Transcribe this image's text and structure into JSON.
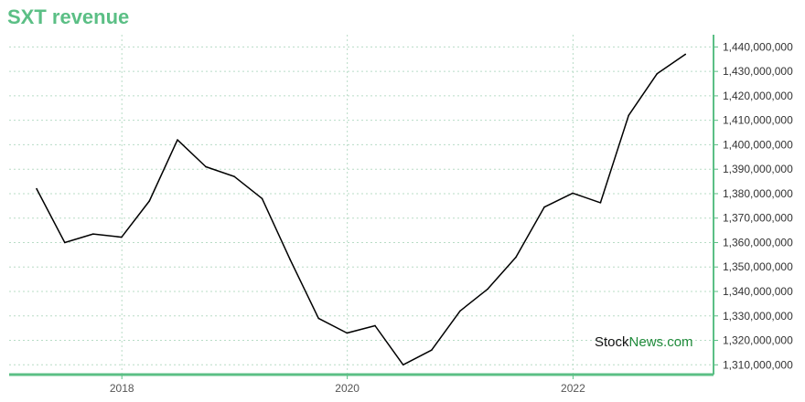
{
  "chart_data": {
    "type": "line",
    "title": "SXT revenue",
    "xlabel": "",
    "ylabel": "",
    "x": [
      "2017-03-31",
      "2017-06-30",
      "2017-09-30",
      "2017-12-31",
      "2018-03-31",
      "2018-06-30",
      "2018-09-30",
      "2018-12-31",
      "2019-03-31",
      "2019-06-30",
      "2019-09-30",
      "2019-12-31",
      "2020-03-31",
      "2020-06-30",
      "2020-09-30",
      "2020-12-31",
      "2021-03-31",
      "2021-06-30",
      "2021-09-30",
      "2021-12-31",
      "2022-03-31",
      "2022-06-30",
      "2022-09-30",
      "2022-12-31"
    ],
    "series": [
      {
        "name": "",
        "values": [
          1382000000,
          1360000000,
          1363500000,
          1362200000,
          1377000000,
          1402000000,
          1391000000,
          1387000000,
          1378000000,
          1353000000,
          1329000000,
          1323000000,
          1326000000,
          1310000000,
          1316000000,
          1332000000,
          1341000000,
          1354000000,
          1374500000,
          1380200000,
          1376300000,
          1412000000,
          1429000000,
          1437000000
        ],
        "color": "#000000"
      }
    ],
    "xticks": [
      "2018",
      "2020",
      "2022"
    ],
    "yticks": [
      1310000000,
      1320000000,
      1330000000,
      1340000000,
      1350000000,
      1360000000,
      1370000000,
      1380000000,
      1390000000,
      1400000000,
      1410000000,
      1420000000,
      1430000000,
      1440000000
    ],
    "ytick_labels": [
      "1,310,000,000",
      "1,320,000,000",
      "1,330,000,000",
      "1,340,000,000",
      "1,350,000,000",
      "1,360,000,000",
      "1,370,000,000",
      "1,380,000,000",
      "1,390,000,000",
      "1,400,000,000",
      "1,410,000,000",
      "1,420,000,000",
      "1,430,000,000",
      "1,440,000,000"
    ],
    "ylim": [
      1306000000,
      1445000000
    ],
    "xlim": [
      "2017-01-01",
      "2023-04-01"
    ],
    "grid": true,
    "legend": "none",
    "axis_color": "#5bbf85",
    "grid_color": "#b8dcc6"
  },
  "watermark": {
    "part1": "Stock",
    "part2": "News.com"
  }
}
